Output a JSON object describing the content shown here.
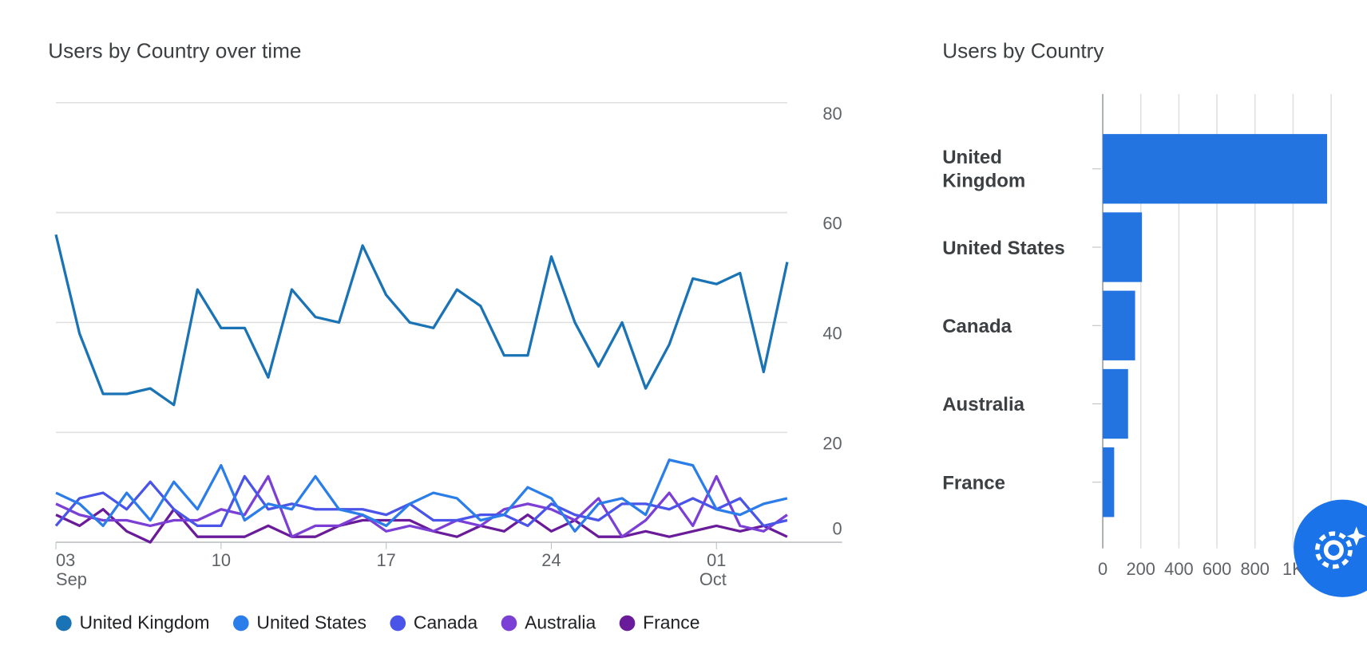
{
  "chart_data": [
    {
      "type": "line",
      "title": "Users by Country over time",
      "categories": [
        [
          "03",
          "Sep"
        ],
        null,
        null,
        null,
        null,
        null,
        null,
        "10",
        null,
        null,
        null,
        null,
        null,
        null,
        "17",
        null,
        null,
        null,
        null,
        null,
        null,
        "24",
        null,
        null,
        null,
        null,
        null,
        null,
        [
          "01",
          "Oct"
        ],
        null,
        null,
        null
      ],
      "ylim": [
        0,
        80
      ],
      "yticks": [
        0,
        20,
        40,
        60,
        80
      ],
      "grid": true,
      "legend": "bottom",
      "series": [
        {
          "name": "United Kingdom",
          "color": "#1a73b5",
          "values": [
            56,
            38,
            27,
            27,
            28,
            25,
            46,
            39,
            39,
            30,
            46,
            41,
            40,
            54,
            45,
            40,
            39,
            46,
            43,
            34,
            34,
            52,
            40,
            32,
            40,
            28,
            36,
            48,
            47,
            49,
            31,
            51
          ]
        },
        {
          "name": "United States",
          "color": "#2b7de9",
          "values": [
            9,
            7,
            3,
            9,
            4,
            11,
            6,
            14,
            4,
            7,
            6,
            12,
            6,
            5,
            3,
            7,
            9,
            8,
            4,
            5,
            10,
            8,
            2,
            7,
            8,
            5,
            15,
            14,
            6,
            5,
            7,
            8
          ]
        },
        {
          "name": "Canada",
          "color": "#4a54e8",
          "values": [
            3,
            8,
            9,
            6,
            11,
            6,
            3,
            3,
            12,
            6,
            7,
            6,
            6,
            6,
            5,
            7,
            4,
            4,
            5,
            5,
            3,
            7,
            5,
            4,
            7,
            7,
            6,
            8,
            6,
            8,
            3,
            4
          ]
        },
        {
          "name": "Australia",
          "color": "#7b3fd6",
          "values": [
            7,
            5,
            4,
            4,
            3,
            4,
            4,
            6,
            5,
            12,
            1,
            3,
            3,
            5,
            2,
            3,
            2,
            4,
            3,
            6,
            7,
            6,
            4,
            8,
            1,
            4,
            9,
            3,
            12,
            3,
            2,
            5
          ]
        },
        {
          "name": "France",
          "color": "#6a1b9a",
          "values": [
            5,
            3,
            6,
            2,
            0,
            6,
            1,
            1,
            1,
            3,
            1,
            1,
            3,
            4,
            4,
            4,
            2,
            1,
            3,
            2,
            5,
            2,
            4,
            1,
            1,
            2,
            1,
            2,
            3,
            2,
            3,
            1
          ]
        }
      ]
    },
    {
      "type": "bar",
      "orientation": "horizontal",
      "title": "Users by Country",
      "categories": [
        "United Kingdom",
        "United States",
        "Canada",
        "Australia",
        "France"
      ],
      "values": [
        1179,
        206,
        170,
        133,
        60
      ],
      "color": "#2374e1",
      "xlim": [
        0,
        1200
      ],
      "xticks": [
        0,
        200,
        400,
        600,
        800,
        {
          "value": 1000,
          "label": "1K"
        }
      ],
      "grid": true
    }
  ]
}
